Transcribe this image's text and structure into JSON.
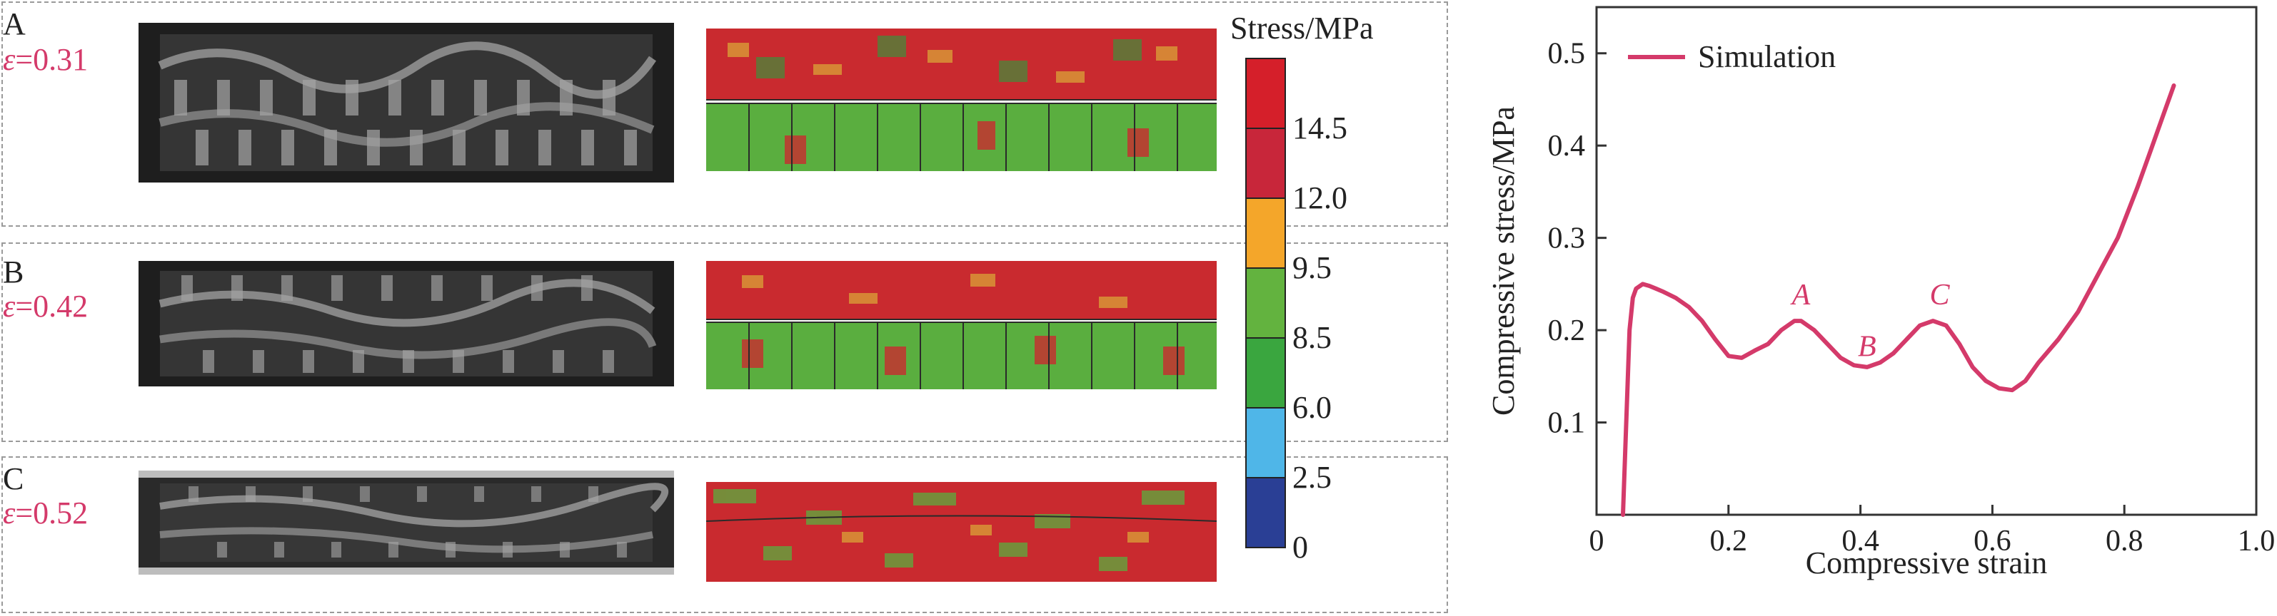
{
  "panels": [
    {
      "label": "A",
      "eps_symbol": "ε",
      "eps_value": "=0.31"
    },
    {
      "label": "B",
      "eps_symbol": "ε",
      "eps_value": "=0.42"
    },
    {
      "label": "C",
      "eps_symbol": "ε",
      "eps_value": "=0.52"
    }
  ],
  "colorbar": {
    "title": "Stress/MPa",
    "tick_labels": [
      "14.5",
      "12.0",
      "9.5",
      "8.5",
      "6.0",
      "2.5",
      "0"
    ],
    "colors": [
      "#d51f2a",
      "#c8263a",
      "#f4a62a",
      "#63b33f",
      "#3aa63f",
      "#4fb6e8",
      "#2a3f95"
    ]
  },
  "chart_data": {
    "type": "line",
    "xlabel": "Compressive strain",
    "ylabel": "Compressive stress/MPa",
    "xlim": [
      0,
      1.0
    ],
    "ylim": [
      0,
      0.55
    ],
    "xticks": [
      "0",
      "0.2",
      "0.4",
      "0.6",
      "0.8",
      "1.0"
    ],
    "yticks": [
      "0.1",
      "0.2",
      "0.3",
      "0.4",
      "0.5"
    ],
    "legend": "top-left",
    "series": [
      {
        "name": "Simulation",
        "color": "#d43a6a",
        "x": [
          0.04,
          0.045,
          0.05,
          0.055,
          0.06,
          0.07,
          0.08,
          0.09,
          0.1,
          0.12,
          0.14,
          0.16,
          0.18,
          0.2,
          0.22,
          0.24,
          0.26,
          0.28,
          0.3,
          0.31,
          0.33,
          0.35,
          0.37,
          0.39,
          0.41,
          0.43,
          0.45,
          0.47,
          0.49,
          0.51,
          0.53,
          0.55,
          0.57,
          0.59,
          0.61,
          0.63,
          0.65,
          0.67,
          0.7,
          0.73,
          0.76,
          0.79,
          0.82,
          0.84,
          0.86,
          0.875
        ],
        "y": [
          0.0,
          0.1,
          0.2,
          0.235,
          0.245,
          0.25,
          0.248,
          0.245,
          0.242,
          0.235,
          0.225,
          0.21,
          0.19,
          0.172,
          0.17,
          0.178,
          0.185,
          0.2,
          0.21,
          0.21,
          0.2,
          0.185,
          0.17,
          0.162,
          0.16,
          0.165,
          0.175,
          0.19,
          0.205,
          0.21,
          0.205,
          0.185,
          0.16,
          0.145,
          0.137,
          0.135,
          0.145,
          0.165,
          0.19,
          0.22,
          0.26,
          0.3,
          0.355,
          0.395,
          0.435,
          0.465
        ]
      }
    ],
    "annotations": [
      {
        "text": "A",
        "x": 0.31,
        "y": 0.228
      },
      {
        "text": "B",
        "x": 0.41,
        "y": 0.172
      },
      {
        "text": "C",
        "x": 0.52,
        "y": 0.228
      }
    ]
  }
}
